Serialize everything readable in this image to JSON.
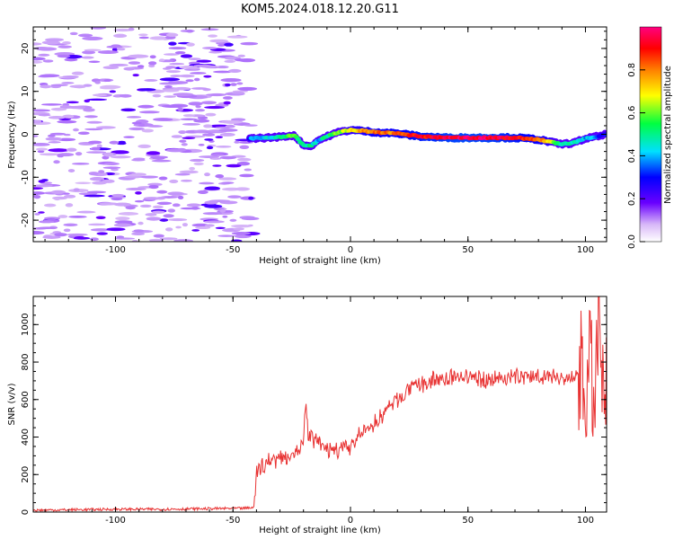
{
  "figure": {
    "title": "KOM5.2024.018.12.20.G11"
  },
  "chart_data": [
    {
      "type": "heatmap",
      "xlabel": "Height of straight line (km)",
      "ylabel": "Frequency (Hz)",
      "xlim": [
        -135,
        109
      ],
      "ylim": [
        -25,
        25
      ],
      "xticks": [
        -100,
        -50,
        0,
        50,
        100
      ],
      "xtick_labels": [
        "-100",
        "-50",
        "0",
        "50",
        "100"
      ],
      "yticks": [
        -20,
        -10,
        0,
        10,
        20
      ],
      "ytick_labels": [
        "-20",
        "-10",
        "0",
        "10",
        "20"
      ],
      "colorbar": {
        "label": "Normalized spectral amplitude",
        "range": [
          0,
          1
        ],
        "ticks": [
          0.0,
          0.2,
          0.4,
          0.6,
          0.8
        ],
        "tick_labels": [
          "0.0",
          "0.2",
          "0.4",
          "0.6",
          "0.8"
        ]
      },
      "noise_region_end_km": -42,
      "signal_trace": {
        "x": [
          -43,
          -35,
          -28,
          -24,
          -20,
          -17,
          -14,
          -10,
          -5,
          0,
          5,
          10,
          20,
          30,
          40,
          50,
          60,
          70,
          80,
          85,
          90,
          95,
          100,
          105,
          109
        ],
        "frequency": [
          -1.0,
          -0.8,
          -0.5,
          -0.2,
          -2.5,
          -2.8,
          -1.5,
          -0.5,
          0.5,
          1.0,
          0.8,
          0.5,
          0.2,
          -0.5,
          -0.8,
          -0.8,
          -0.8,
          -0.8,
          -1.2,
          -1.8,
          -2.3,
          -2.0,
          -1.0,
          -0.5,
          0.0
        ],
        "amplitude": [
          0.35,
          0.45,
          0.5,
          0.6,
          0.45,
          0.5,
          0.4,
          0.5,
          0.6,
          0.7,
          0.75,
          0.8,
          0.82,
          0.9,
          0.95,
          0.97,
          0.95,
          0.9,
          0.82,
          0.7,
          0.5,
          0.45,
          0.4,
          0.35,
          0.3
        ]
      }
    },
    {
      "type": "line",
      "xlabel": "Height of straight line (km)",
      "ylabel": "SNR (v/v)",
      "xlim": [
        -135,
        109
      ],
      "ylim": [
        0,
        1150
      ],
      "xticks": [
        -100,
        -50,
        0,
        50,
        100
      ],
      "xtick_labels": [
        "-100",
        "-50",
        "0",
        "50",
        "100"
      ],
      "yticks": [
        0,
        200,
        400,
        600,
        800,
        1000
      ],
      "ytick_labels": [
        "0",
        "200",
        "400",
        "600",
        "800",
        "1000"
      ],
      "color": "#e83232",
      "series": [
        {
          "x": [
            -135,
            -120,
            -100,
            -80,
            -60,
            -45,
            -41,
            -40,
            -38,
            -35,
            -30,
            -25,
            -20,
            -19,
            -18,
            -15,
            -10,
            -5,
            0,
            5,
            10,
            15,
            20,
            25,
            30,
            35,
            40,
            45,
            50,
            55,
            60,
            65,
            70,
            75,
            80,
            85,
            90,
            95,
            98,
            100,
            102,
            104,
            105,
            106,
            107,
            108,
            109
          ],
          "y": [
            10,
            12,
            15,
            15,
            18,
            20,
            25,
            200,
            250,
            270,
            290,
            310,
            350,
            600,
            420,
            380,
            330,
            330,
            350,
            420,
            470,
            540,
            600,
            650,
            680,
            700,
            710,
            720,
            720,
            710,
            710,
            715,
            720,
            720,
            730,
            725,
            720,
            700,
            750,
            600,
            800,
            500,
            900,
            1100,
            700,
            500,
            700
          ],
          "jitter": 60
        }
      ]
    }
  ]
}
